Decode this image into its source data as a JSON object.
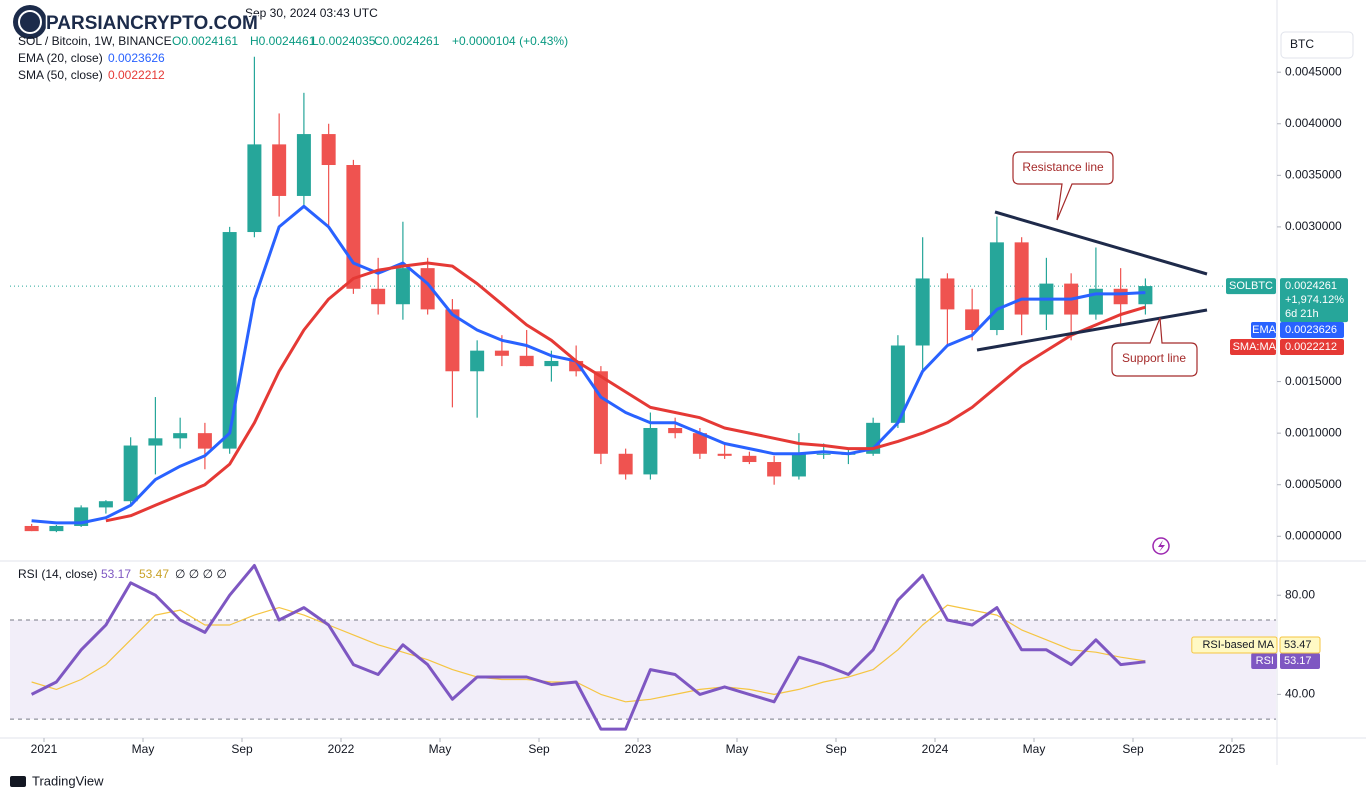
{
  "header": {
    "timestamp": "Sep 30, 2024 03:43 UTC",
    "watermark": "PARSIANCRYPTO.COM",
    "footer": "TradingView"
  },
  "chart_data": [
    {
      "type": "candlestick",
      "title": "SOL / Bitcoin, 1W, BINANCE",
      "ohlc_labels": [
        "O0.0024161",
        "H0.0024461",
        "L0.0024035",
        "C0.0024261"
      ],
      "change": "+0.0000104 (+0.43%)",
      "unit": "BTC",
      "up_color": "#26a69a",
      "down_color": "#ef5350",
      "x": [
        "2020-12",
        "2021-01",
        "2021-02",
        "2021-03",
        "2021-04",
        "2021-05",
        "2021-06",
        "2021-07",
        "2021-08",
        "2021-09",
        "2021-10",
        "2021-11",
        "2021-12",
        "2022-01",
        "2022-02",
        "2022-03",
        "2022-04",
        "2022-05",
        "2022-06",
        "2022-07",
        "2022-08",
        "2022-09",
        "2022-10",
        "2022-11",
        "2022-12",
        "2023-01",
        "2023-02",
        "2023-03",
        "2023-04",
        "2023-05",
        "2023-06",
        "2023-07",
        "2023-08",
        "2023-09",
        "2023-10",
        "2023-11",
        "2023-12",
        "2024-01",
        "2024-02",
        "2024-03",
        "2024-04",
        "2024-05",
        "2024-06",
        "2024-07",
        "2024-08",
        "2024-09"
      ],
      "open": [
        0.0001,
        5e-05,
        0.0001,
        0.00028,
        0.00034,
        0.00088,
        0.00095,
        0.001,
        0.00085,
        0.00295,
        0.0038,
        0.0033,
        0.0039,
        0.0036,
        0.0024,
        0.00225,
        0.0026,
        0.0022,
        0.0016,
        0.0018,
        0.00175,
        0.00165,
        0.0017,
        0.0016,
        0.0008,
        0.0006,
        0.00105,
        0.001,
        0.0008,
        0.00078,
        0.00072,
        0.00058,
        0.0008,
        0.0008,
        0.0008,
        0.0011,
        0.00185,
        0.0025,
        0.0022,
        0.002,
        0.00285,
        0.00215,
        0.00245,
        0.00215,
        0.0024,
        0.00225
      ],
      "high": [
        0.00012,
        0.00011,
        0.0003,
        0.00035,
        0.00096,
        0.00135,
        0.00115,
        0.0011,
        0.003,
        0.00465,
        0.0041,
        0.0043,
        0.004,
        0.00365,
        0.0027,
        0.00305,
        0.0027,
        0.0023,
        0.0019,
        0.00195,
        0.002,
        0.0018,
        0.00185,
        0.00165,
        0.00085,
        0.0012,
        0.00115,
        0.00105,
        0.0009,
        0.00082,
        0.00078,
        0.001,
        0.0009,
        0.00085,
        0.00115,
        0.00195,
        0.0029,
        0.00255,
        0.0024,
        0.0031,
        0.0029,
        0.0027,
        0.00255,
        0.0028,
        0.0026,
        0.0025
      ],
      "low": [
        5e-05,
        4e-05,
        9e-05,
        0.00022,
        0.0003,
        0.0006,
        0.00085,
        0.00065,
        0.0008,
        0.0029,
        0.0031,
        0.0032,
        0.003,
        0.00235,
        0.00215,
        0.0021,
        0.00215,
        0.00125,
        0.00115,
        0.00165,
        0.00165,
        0.0015,
        0.00155,
        0.0007,
        0.00055,
        0.00055,
        0.00095,
        0.00075,
        0.00075,
        0.0007,
        0.0005,
        0.00055,
        0.00075,
        0.0007,
        0.00078,
        0.00105,
        0.0016,
        0.00185,
        0.0019,
        0.00195,
        0.00195,
        0.002,
        0.0019,
        0.0021,
        0.00205,
        0.00215
      ],
      "close": [
        5e-05,
        0.0001,
        0.00028,
        0.00034,
        0.00088,
        0.00095,
        0.001,
        0.00085,
        0.00295,
        0.0038,
        0.0033,
        0.0039,
        0.0036,
        0.0024,
        0.00225,
        0.0026,
        0.0022,
        0.0016,
        0.0018,
        0.00175,
        0.00165,
        0.0017,
        0.0016,
        0.0008,
        0.0006,
        0.00105,
        0.001,
        0.0008,
        0.00078,
        0.00072,
        0.00058,
        0.0008,
        0.0008,
        0.0008,
        0.0011,
        0.00185,
        0.0025,
        0.0022,
        0.002,
        0.00285,
        0.00215,
        0.00245,
        0.00215,
        0.0024,
        0.00225,
        0.0024261
      ],
      "series": [
        {
          "name": "EMA (20, close)",
          "tag": "EMA",
          "legend_value": "0.0023626",
          "color": "#2962ff",
          "values": [
            0.00015,
            0.00013,
            0.00013,
            0.00018,
            0.0003,
            0.00055,
            0.00068,
            0.00078,
            0.001,
            0.0023,
            0.003,
            0.0032,
            0.003,
            0.00265,
            0.00255,
            0.00265,
            0.00245,
            0.00215,
            0.002,
            0.0019,
            0.00185,
            0.00175,
            0.0017,
            0.00135,
            0.0012,
            0.0011,
            0.0011,
            0.001,
            0.0009,
            0.00085,
            0.0008,
            0.0008,
            0.00082,
            0.0008,
            0.00085,
            0.0011,
            0.0016,
            0.00185,
            0.00195,
            0.0022,
            0.0023,
            0.0023,
            0.0023,
            0.00235,
            0.00235,
            0.0023626
          ]
        },
        {
          "name": "SMA (50, close)",
          "tag": "SMA:MA",
          "legend_value": "0.0022212",
          "color": "#e53935",
          "values": [
            null,
            null,
            null,
            0.00015,
            0.0002,
            0.0003,
            0.0004,
            0.0005,
            0.0007,
            0.0011,
            0.0016,
            0.002,
            0.0023,
            0.0025,
            0.00258,
            0.00262,
            0.00265,
            0.00262,
            0.00245,
            0.00225,
            0.00205,
            0.0019,
            0.0017,
            0.00155,
            0.0014,
            0.00125,
            0.0012,
            0.00115,
            0.00105,
            0.001,
            0.00095,
            0.0009,
            0.00088,
            0.00085,
            0.00085,
            0.00092,
            0.001,
            0.0011,
            0.00125,
            0.00145,
            0.00165,
            0.0018,
            0.00195,
            0.00205,
            0.00215,
            0.0022212
          ]
        }
      ],
      "price_tag": {
        "symbol": "SOLBTC",
        "value": "0.0024261",
        "change": "+1,974.12%",
        "countdown": "6d 21h"
      },
      "annotations": [
        "Resistance line",
        "Support line"
      ],
      "ylim": [
        -0.00023,
        0.0052
      ],
      "yticks": [
        {
          "value": 0,
          "label": "0.0000000"
        },
        {
          "value": 0.0005,
          "label": "0.0005000"
        },
        {
          "value": 0.001,
          "label": "0.0010000"
        },
        {
          "value": 0.0015,
          "label": "0.0015000"
        },
        {
          "value": 0.003,
          "label": "0.0030000"
        },
        {
          "value": 0.0035,
          "label": "0.0035000"
        },
        {
          "value": 0.004,
          "label": "0.0040000"
        },
        {
          "value": 0.0045,
          "label": "0.0045000"
        }
      ],
      "xticks": [
        {
          "value": "2021-01",
          "label": "2021"
        },
        {
          "value": "2021-05",
          "label": "May"
        },
        {
          "value": "2021-09",
          "label": "Sep"
        },
        {
          "value": "2022-01",
          "label": "2022"
        },
        {
          "value": "2022-05",
          "label": "May"
        },
        {
          "value": "2022-09",
          "label": "Sep"
        },
        {
          "value": "2023-01",
          "label": "2023"
        },
        {
          "value": "2023-05",
          "label": "May"
        },
        {
          "value": "2023-09",
          "label": "Sep"
        },
        {
          "value": "2024-01",
          "label": "2024"
        },
        {
          "value": "2024-05",
          "label": "May"
        },
        {
          "value": "2024-09",
          "label": "Sep"
        },
        {
          "value": "2025-01",
          "label": "2025"
        }
      ]
    },
    {
      "type": "line",
      "title": "RSI (14, close)",
      "legend_values": [
        "53.17",
        "53.47"
      ],
      "legend_extra": "∅ ∅ ∅ ∅",
      "series": [
        {
          "name": "RSI",
          "color": "#7e57c2",
          "values": [
            40,
            45,
            58,
            68,
            85,
            80,
            70,
            65,
            80,
            92,
            70,
            75,
            68,
            52,
            48,
            60,
            52,
            38,
            47,
            47,
            47,
            44,
            45,
            26,
            26,
            50,
            48,
            40,
            43,
            40,
            37,
            55,
            52,
            48,
            58,
            78,
            88,
            70,
            68,
            75,
            58,
            58,
            52,
            62,
            52,
            53.17
          ]
        },
        {
          "name": "RSI-based MA",
          "color": "#f5c542",
          "values": [
            45,
            42,
            46,
            52,
            62,
            72,
            74,
            68,
            68,
            72,
            75,
            72,
            68,
            64,
            60,
            57,
            54,
            50,
            47,
            46,
            46,
            45,
            45,
            40,
            37,
            38,
            40,
            42,
            43,
            42,
            40,
            42,
            45,
            47,
            50,
            58,
            68,
            76,
            74,
            72,
            66,
            62,
            58,
            57,
            55,
            53.47
          ]
        }
      ],
      "bands": [
        30,
        70
      ],
      "ylim": [
        22.4,
        93
      ],
      "yticks": [
        {
          "value": 40,
          "label": "40.00"
        },
        {
          "value": 80,
          "label": "80.00"
        }
      ]
    }
  ]
}
